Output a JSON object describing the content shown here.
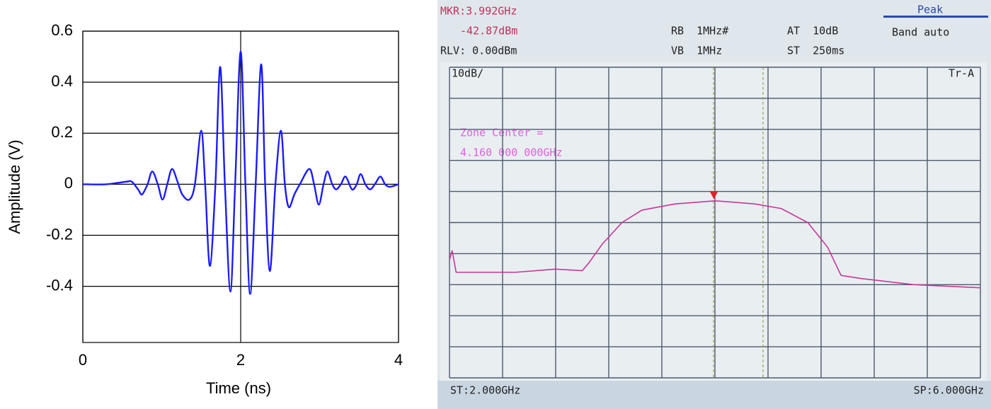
{
  "chart_data": [
    {
      "type": "line",
      "xlabel": "Time (ns)",
      "ylabel": "Amplitude (V)",
      "xlim": [
        0,
        4
      ],
      "xticks": [
        0,
        2,
        4
      ],
      "ylim": [
        -0.62,
        0.6
      ],
      "yticks": [
        -0.4,
        -0.2,
        0,
        0.2,
        0.4,
        0.6
      ],
      "grid": true,
      "color": "#1a1aff",
      "x": [
        0,
        0.3,
        0.55,
        0.62,
        0.7,
        0.75,
        0.82,
        0.88,
        0.95,
        1.01,
        1.07,
        1.13,
        1.2,
        1.26,
        1.35,
        1.42,
        1.5,
        1.55,
        1.61,
        1.68,
        1.74,
        1.8,
        1.87,
        1.93,
        2.0,
        2.06,
        2.12,
        2.19,
        2.26,
        2.31,
        2.37,
        2.44,
        2.51,
        2.56,
        2.61,
        2.68,
        2.75,
        2.87,
        2.93,
        2.99,
        3.05,
        3.1,
        3.16,
        3.21,
        3.27,
        3.33,
        3.41,
        3.47,
        3.52,
        3.58,
        3.64,
        3.7,
        3.77,
        3.83,
        3.89,
        4.0
      ],
      "values": [
        0,
        0,
        0.01,
        0.01,
        -0.02,
        -0.04,
        0,
        0.05,
        0,
        -0.06,
        0,
        0.06,
        0.01,
        -0.04,
        -0.06,
        0,
        0.21,
        0,
        -0.32,
        0,
        0.46,
        0,
        -0.42,
        0,
        0.52,
        0,
        -0.43,
        0,
        0.47,
        0,
        -0.34,
        0,
        0.21,
        0,
        -0.09,
        -0.04,
        0,
        0.06,
        0,
        -0.08,
        0,
        0.05,
        0,
        -0.02,
        0,
        0.03,
        -0.02,
        0,
        0.04,
        0,
        -0.02,
        0,
        0.03,
        0,
        -0.01,
        0
      ]
    },
    {
      "type": "spectrum",
      "color": "#c8379a",
      "xlim": [
        2,
        6
      ],
      "xticks": [
        2,
        2.4,
        2.8,
        3.2,
        3.6,
        4,
        4.4,
        4.8,
        5.2,
        5.6,
        6
      ],
      "ylim": [
        -100,
        0
      ],
      "yticks": [
        0,
        -10,
        -20,
        -30,
        -40,
        -50,
        -60,
        -70,
        -80,
        -90,
        -100
      ],
      "grid": true,
      "x": [
        2.0,
        2.02,
        2.05,
        2.5,
        2.8,
        3.0,
        3.05,
        3.15,
        3.3,
        3.45,
        3.7,
        4.0,
        4.3,
        4.5,
        4.7,
        4.85,
        4.95,
        5.1,
        5.5,
        6.0
      ],
      "values": [
        -62,
        -59,
        -66,
        -66,
        -65,
        -65.5,
        -63,
        -57,
        -50,
        -46,
        -44,
        -43,
        -44,
        -45.5,
        -50,
        -58,
        -67,
        -68,
        -70,
        -71
      ],
      "marker": {
        "x": 3.992,
        "y": -42.87,
        "x_label": "MKR:3.992GHz",
        "y_label": "-42.87dBm"
      },
      "annotations": [
        "RLV: 0.00dBm",
        "RB  1MHz#",
        "VB  1MHz",
        "AT  10dB",
        "ST  250ms",
        "Peak",
        "Band auto",
        "10dB/",
        "Tr-A",
        "Zone Center =",
        "4.160 000 000GHz",
        "ST:2.000GHz",
        "SP:6.000GHz"
      ]
    }
  ]
}
